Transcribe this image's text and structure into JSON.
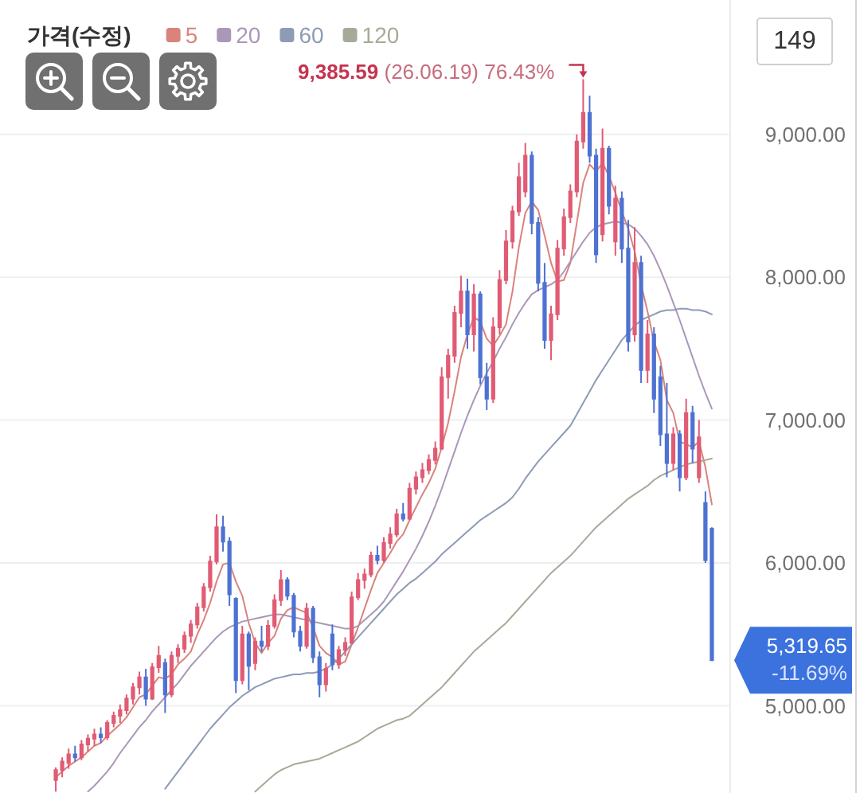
{
  "chart_data": {
    "type": "candlestick",
    "legend_title": "가격(수정)",
    "legend": "top left",
    "grid": "y",
    "tick_labels": "y",
    "ylim": [
      4390,
      9940
    ],
    "yticks": [
      {
        "value": 5000,
        "label": "5,000.00"
      },
      {
        "value": 6000,
        "label": "6,000.00"
      },
      {
        "value": 7000,
        "label": "7,000.00"
      },
      {
        "value": 8000,
        "label": "8,000.00"
      },
      {
        "value": 9000,
        "label": "9,000.00"
      }
    ],
    "categories": [
      null,
      null,
      null,
      null,
      null,
      null,
      null,
      null,
      null,
      null,
      null,
      null,
      null,
      null,
      null,
      null,
      null,
      null,
      null,
      null,
      null,
      null,
      null,
      null,
      null,
      null,
      null,
      null,
      null,
      null,
      null,
      null,
      null,
      null,
      null,
      null,
      null,
      null,
      null,
      null,
      null,
      null,
      null,
      null,
      null,
      null,
      null,
      null,
      null,
      null,
      null,
      null,
      null,
      null,
      null,
      null,
      null,
      null,
      null,
      null,
      null,
      null,
      null,
      null,
      null,
      null,
      null,
      null,
      null,
      null,
      null,
      null,
      null,
      null,
      null,
      null,
      null,
      null,
      null,
      null,
      null,
      null,
      null,
      null,
      null,
      null,
      null,
      null,
      null,
      null,
      null,
      null,
      null,
      null,
      null,
      null,
      null,
      null,
      null,
      null,
      null,
      null,
      null
    ],
    "ohlc": [
      [
        4480,
        4570,
        4400,
        4550
      ],
      [
        4550,
        4640,
        4500,
        4610
      ],
      [
        4600,
        4700,
        4560,
        4660
      ],
      [
        4660,
        4720,
        4610,
        4640
      ],
      [
        4640,
        4760,
        4620,
        4730
      ],
      [
        4730,
        4800,
        4680,
        4770
      ],
      [
        4770,
        4840,
        4720,
        4800
      ],
      [
        4800,
        4850,
        4740,
        4780
      ],
      [
        4780,
        4900,
        4760,
        4880
      ],
      [
        4880,
        4960,
        4850,
        4930
      ],
      [
        4930,
        5010,
        4880,
        4970
      ],
      [
        4970,
        5080,
        4940,
        5050
      ],
      [
        5050,
        5160,
        5010,
        5130
      ],
      [
        5130,
        5240,
        5080,
        5200
      ],
      [
        5200,
        5260,
        5000,
        5050
      ],
      [
        5050,
        5300,
        5040,
        5270
      ],
      [
        5270,
        5420,
        5230,
        5350
      ],
      [
        5300,
        5330,
        4950,
        5080
      ],
      [
        5080,
        5380,
        5060,
        5350
      ],
      [
        5350,
        5430,
        5300,
        5400
      ],
      [
        5400,
        5520,
        5370,
        5490
      ],
      [
        5490,
        5600,
        5440,
        5570
      ],
      [
        5570,
        5720,
        5540,
        5690
      ],
      [
        5690,
        5860,
        5660,
        5830
      ],
      [
        5830,
        6050,
        5800,
        6010
      ],
      [
        6010,
        6340,
        5990,
        6250
      ],
      [
        6250,
        6330,
        6080,
        6150
      ],
      [
        6150,
        6180,
        5700,
        5780
      ],
      [
        5750,
        5760,
        5090,
        5180
      ],
      [
        5180,
        5560,
        5150,
        5500
      ],
      [
        5500,
        5520,
        5110,
        5280
      ],
      [
        5300,
        5480,
        5250,
        5450
      ],
      [
        5450,
        5560,
        5380,
        5420
      ],
      [
        5420,
        5600,
        5390,
        5560
      ],
      [
        5560,
        5780,
        5540,
        5740
      ],
      [
        5740,
        5950,
        5700,
        5880
      ],
      [
        5880,
        5900,
        5740,
        5770
      ],
      [
        5770,
        5790,
        5480,
        5520
      ],
      [
        5520,
        5560,
        5380,
        5420
      ],
      [
        5420,
        5720,
        5400,
        5680
      ],
      [
        5680,
        5700,
        5300,
        5340
      ],
      [
        5340,
        5380,
        5060,
        5150
      ],
      [
        5150,
        5300,
        5100,
        5260
      ],
      [
        5500,
        5570,
        5250,
        5290
      ],
      [
        5290,
        5420,
        5260,
        5390
      ],
      [
        5390,
        5480,
        5350,
        5440
      ],
      [
        5440,
        5800,
        5430,
        5760
      ],
      [
        5760,
        5930,
        5740,
        5880
      ],
      [
        5880,
        5960,
        5820,
        5920
      ],
      [
        5920,
        6080,
        5900,
        6050
      ],
      [
        6050,
        6120,
        5990,
        6020
      ],
      [
        6020,
        6180,
        6000,
        6140
      ],
      [
        6140,
        6250,
        6100,
        6200
      ],
      [
        6200,
        6380,
        6180,
        6340
      ],
      [
        6340,
        6420,
        6290,
        6310
      ],
      [
        6310,
        6560,
        6300,
        6520
      ],
      [
        6520,
        6640,
        6480,
        6600
      ],
      [
        6600,
        6700,
        6560,
        6650
      ],
      [
        6650,
        6760,
        6620,
        6720
      ],
      [
        6720,
        6850,
        6690,
        6800
      ],
      [
        6800,
        7370,
        6790,
        7300
      ],
      [
        7300,
        7500,
        7150,
        7450
      ],
      [
        7450,
        7800,
        7400,
        7750
      ],
      [
        7750,
        8010,
        7650,
        7900
      ],
      [
        7900,
        7990,
        7500,
        7600
      ],
      [
        7600,
        7950,
        7480,
        7880
      ],
      [
        7880,
        7900,
        7250,
        7300
      ],
      [
        7300,
        7400,
        7070,
        7150
      ],
      [
        7150,
        7720,
        7120,
        7650
      ],
      [
        7650,
        8050,
        7600,
        7980
      ],
      [
        7980,
        8330,
        7950,
        8250
      ],
      [
        8250,
        8500,
        8200,
        8460
      ],
      [
        8460,
        8800,
        8430,
        8700
      ],
      [
        8600,
        8940,
        8560,
        8850
      ],
      [
        8850,
        8880,
        8300,
        8380
      ],
      [
        8380,
        8420,
        7900,
        7960
      ],
      [
        7960,
        8100,
        7500,
        7560
      ],
      [
        7560,
        7800,
        7420,
        7740
      ],
      [
        7740,
        8260,
        7700,
        8200
      ],
      [
        8200,
        8480,
        8150,
        8420
      ],
      [
        8420,
        8650,
        8380,
        8600
      ],
      [
        8600,
        9000,
        8560,
        8950
      ],
      [
        8950,
        9385.59,
        8900,
        9150
      ],
      [
        9150,
        9270,
        8800,
        8850
      ],
      [
        8850,
        8900,
        8100,
        8160
      ],
      [
        8300,
        9040,
        8250,
        8900
      ],
      [
        8900,
        8920,
        8440,
        8500
      ],
      [
        8250,
        8640,
        8150,
        8550
      ],
      [
        8550,
        8600,
        8100,
        8200
      ],
      [
        8200,
        8400,
        7480,
        7550
      ],
      [
        7600,
        8350,
        7550,
        8100
      ],
      [
        8100,
        8150,
        7260,
        7350
      ],
      [
        7350,
        7700,
        7260,
        7600
      ],
      [
        7600,
        7650,
        7050,
        7150
      ],
      [
        7300,
        7380,
        6820,
        6900
      ],
      [
        6900,
        7260,
        6600,
        6700
      ],
      [
        6700,
        6950,
        6650,
        6900
      ],
      [
        6900,
        6930,
        6500,
        6600
      ],
      [
        6600,
        7150,
        6580,
        7050
      ],
      [
        7050,
        7100,
        6700,
        6800
      ],
      [
        6600,
        7000,
        6560,
        6880
      ],
      [
        6420,
        6500,
        6000,
        6020
      ],
      [
        6240,
        6250,
        5319.65,
        5319.65
      ]
    ],
    "colors": [
      "#e15b74",
      "#e15b74",
      "#e15b74",
      "#4e72d2",
      "#e15b74",
      "#e15b74",
      "#e15b74",
      "#4e72d2",
      "#e15b74",
      "#e15b74",
      "#e15b74",
      "#e15b74",
      "#e15b74",
      "#e15b74",
      "#4e72d2",
      "#e15b74",
      "#e15b74",
      "#4e72d2",
      "#e15b74",
      "#e15b74",
      "#e15b74",
      "#e15b74",
      "#e15b74",
      "#e15b74",
      "#e15b74",
      "#e15b74",
      "#4e72d2",
      "#4e72d2",
      "#4e72d2",
      "#e15b74",
      "#4e72d2",
      "#e15b74",
      "#4e72d2",
      "#e15b74",
      "#e15b74",
      "#e15b74",
      "#4e72d2",
      "#4e72d2",
      "#4e72d2",
      "#e15b74",
      "#4e72d2",
      "#4e72d2",
      "#e15b74",
      "#4e72d2",
      "#e15b74",
      "#e15b74",
      "#e15b74",
      "#e15b74",
      "#e15b74",
      "#e15b74",
      "#4e72d2",
      "#e15b74",
      "#e15b74",
      "#e15b74",
      "#4e72d2",
      "#e15b74",
      "#e15b74",
      "#e15b74",
      "#e15b74",
      "#e15b74",
      "#e15b74",
      "#e15b74",
      "#e15b74",
      "#e15b74",
      "#4e72d2",
      "#e15b74",
      "#4e72d2",
      "#4e72d2",
      "#e15b74",
      "#e15b74",
      "#e15b74",
      "#e15b74",
      "#e15b74",
      "#e15b74",
      "#4e72d2",
      "#4e72d2",
      "#4e72d2",
      "#e15b74",
      "#e15b74",
      "#e15b74",
      "#e15b74",
      "#e15b74",
      "#e15b74",
      "#4e72d2",
      "#4e72d2",
      "#e15b74",
      "#4e72d2",
      "#e15b74",
      "#4e72d2",
      "#4e72d2",
      "#e15b74",
      "#4e72d2",
      "#e15b74",
      "#4e72d2",
      "#4e72d2",
      "#4e72d2",
      "#e15b74",
      "#4e72d2",
      "#e15b74",
      "#4e72d2",
      "#e15b74",
      "#4e72d2",
      "#4e72d2"
    ],
    "series": [
      {
        "type": "line",
        "name": "5",
        "color": "#d9837b",
        "values": [
          4500,
          4540,
          4580,
          4610,
          4640,
          4680,
          4720,
          4740,
          4790,
          4830,
          4870,
          4920,
          4990,
          5060,
          5080,
          5140,
          5200,
          5190,
          5220,
          5290,
          5330,
          5380,
          5500,
          5600,
          5720,
          5870,
          5990,
          6000,
          5870,
          5770,
          5580,
          5440,
          5370,
          5440,
          5490,
          5610,
          5670,
          5690,
          5670,
          5650,
          5550,
          5420,
          5370,
          5340,
          5290,
          5310,
          5430,
          5550,
          5680,
          5810,
          5930,
          6000,
          6070,
          6150,
          6200,
          6300,
          6390,
          6480,
          6560,
          6660,
          6810,
          6980,
          7200,
          7440,
          7600,
          7720,
          7690,
          7570,
          7520,
          7590,
          7670,
          7900,
          8210,
          8450,
          8530,
          8470,
          8290,
          8100,
          7970,
          7980,
          8100,
          8380,
          8660,
          8790,
          8740,
          8800,
          8710,
          8590,
          8460,
          8340,
          8180,
          7950,
          7760,
          7550,
          7420,
          7140,
          7050,
          6850,
          6830,
          6810,
          6850,
          6670,
          6410
        ]
      },
      {
        "type": "line",
        "name": "20",
        "color": "#ab97b8",
        "values": [
          null,
          null,
          null,
          null,
          null,
          4400,
          4440,
          4490,
          4540,
          4600,
          4670,
          4730,
          4790,
          4850,
          4900,
          4960,
          5010,
          5060,
          5110,
          5160,
          5220,
          5280,
          5330,
          5380,
          5430,
          5480,
          5520,
          5550,
          5570,
          5590,
          5600,
          5610,
          5620,
          5630,
          5640,
          5640,
          5630,
          5620,
          5610,
          5600,
          5590,
          5580,
          5570,
          5560,
          5550,
          5540,
          5540,
          5560,
          5600,
          5640,
          5680,
          5730,
          5800,
          5870,
          5940,
          6020,
          6100,
          6190,
          6290,
          6400,
          6520,
          6650,
          6780,
          6910,
          7030,
          7140,
          7240,
          7330,
          7410,
          7500,
          7580,
          7670,
          7750,
          7820,
          7880,
          7910,
          7930,
          7950,
          7980,
          8040,
          8110,
          8180,
          8250,
          8310,
          8350,
          8370,
          8380,
          8390,
          8380,
          8370,
          8340,
          8290,
          8230,
          8150,
          8050,
          7940,
          7820,
          7700,
          7570,
          7440,
          7310,
          7190,
          7080
        ]
      },
      {
        "type": "line",
        "name": "60",
        "color": "#8d9bb5",
        "values": [
          null,
          null,
          null,
          null,
          null,
          null,
          null,
          null,
          null,
          null,
          null,
          null,
          null,
          null,
          null,
          null,
          null,
          4420,
          4480,
          4540,
          4600,
          4660,
          4720,
          4780,
          4840,
          4890,
          4940,
          4990,
          5030,
          5070,
          5100,
          5130,
          5150,
          5170,
          5190,
          5200,
          5210,
          5220,
          5220,
          5230,
          5230,
          5240,
          5260,
          5290,
          5330,
          5380,
          5430,
          5480,
          5530,
          5580,
          5630,
          5680,
          5730,
          5780,
          5820,
          5860,
          5890,
          5930,
          5970,
          6010,
          6060,
          6100,
          6140,
          6180,
          6220,
          6260,
          6300,
          6330,
          6360,
          6390,
          6420,
          6460,
          6520,
          6590,
          6650,
          6710,
          6760,
          6810,
          6860,
          6910,
          6960,
          7040,
          7120,
          7200,
          7280,
          7350,
          7420,
          7490,
          7560,
          7610,
          7660,
          7700,
          7720,
          7740,
          7760,
          7770,
          7770,
          7780,
          7780,
          7770,
          7770,
          7760,
          7740
        ]
      },
      {
        "type": "line",
        "name": "120",
        "color": "#a4ab98",
        "values": [
          null,
          null,
          null,
          null,
          null,
          null,
          null,
          null,
          null,
          null,
          null,
          null,
          null,
          null,
          null,
          null,
          null,
          null,
          null,
          null,
          null,
          null,
          null,
          null,
          null,
          null,
          null,
          null,
          null,
          null,
          null,
          4400,
          4440,
          4480,
          4520,
          4550,
          4570,
          4590,
          4600,
          4610,
          4620,
          4630,
          4650,
          4670,
          4690,
          4710,
          4730,
          4750,
          4780,
          4810,
          4840,
          4860,
          4880,
          4900,
          4910,
          4930,
          4970,
          5010,
          5050,
          5090,
          5130,
          5180,
          5230,
          5280,
          5330,
          5380,
          5420,
          5460,
          5500,
          5540,
          5580,
          5630,
          5680,
          5730,
          5780,
          5830,
          5880,
          5930,
          5970,
          6010,
          6050,
          6100,
          6150,
          6200,
          6250,
          6290,
          6330,
          6370,
          6410,
          6450,
          6480,
          6510,
          6540,
          6580,
          6610,
          6630,
          6650,
          6670,
          6690,
          6700,
          6710,
          6720,
          6730
        ]
      }
    ],
    "annotations": [
      "9,385.59 (26.06.19) 76.43%",
      "5,319.65\n-11.69%",
      "149"
    ]
  }
}
